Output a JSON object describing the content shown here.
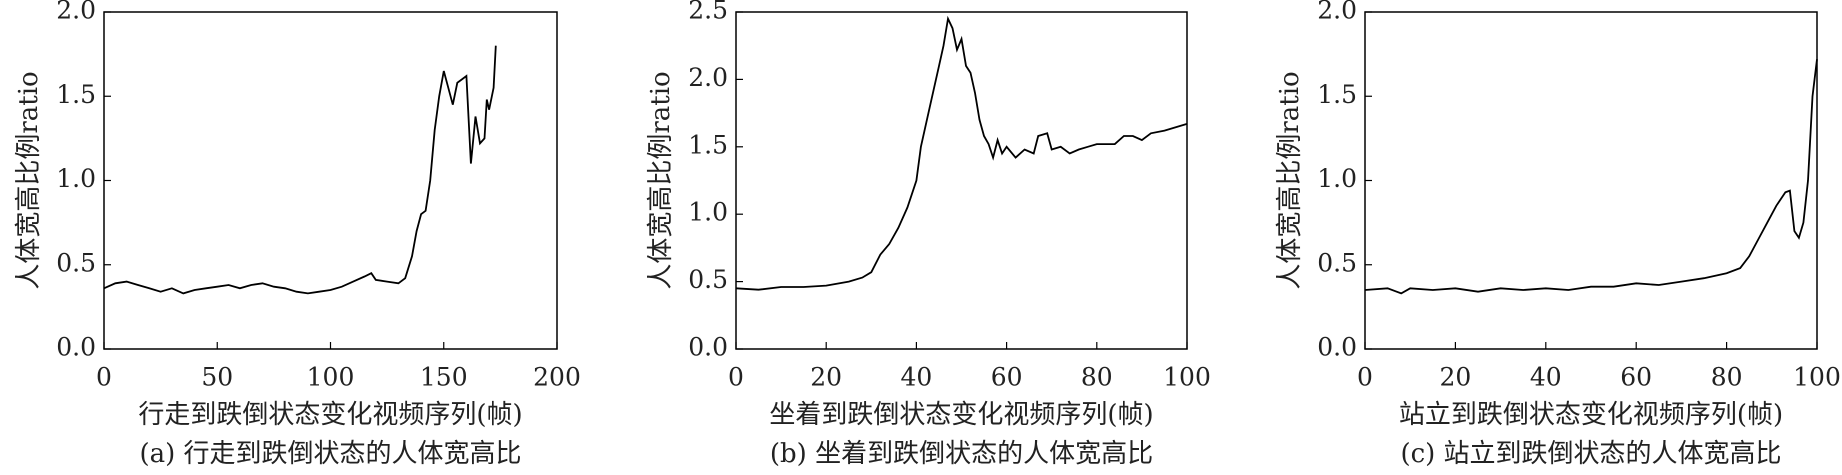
{
  "chart_data": [
    {
      "type": "line",
      "ylabel": "人体宽高比例ratio",
      "xlabel": "行走到跌倒状态变化视频序列(帧)",
      "caption": "(a) 行走到跌倒状态的人体宽高比",
      "xlim": [
        0,
        200
      ],
      "xticks": [
        0,
        50,
        100,
        150,
        200
      ],
      "ylim": [
        0,
        2
      ],
      "yticks": [
        {
          "value": 0,
          "label": "0.0"
        },
        0.5,
        {
          "value": 1,
          "label": "1.0"
        },
        1.5,
        {
          "value": 2,
          "label": "2.0"
        }
      ],
      "color": "#000000",
      "x": [
        0,
        5,
        10,
        15,
        20,
        25,
        30,
        35,
        40,
        45,
        50,
        55,
        60,
        65,
        70,
        75,
        80,
        85,
        90,
        95,
        100,
        105,
        110,
        115,
        118,
        120,
        125,
        130,
        133,
        136,
        138,
        140,
        142,
        144,
        146,
        148,
        150,
        152,
        154,
        156,
        158,
        160,
        162,
        164,
        166,
        168,
        169,
        170,
        172,
        173
      ],
      "values": [
        0.36,
        0.39,
        0.4,
        0.38,
        0.36,
        0.34,
        0.36,
        0.33,
        0.35,
        0.36,
        0.37,
        0.38,
        0.36,
        0.38,
        0.39,
        0.37,
        0.36,
        0.34,
        0.33,
        0.34,
        0.35,
        0.37,
        0.4,
        0.43,
        0.45,
        0.41,
        0.4,
        0.39,
        0.42,
        0.55,
        0.7,
        0.8,
        0.82,
        1.0,
        1.3,
        1.5,
        1.65,
        1.55,
        1.45,
        1.58,
        1.6,
        1.62,
        1.1,
        1.38,
        1.22,
        1.25,
        1.48,
        1.42,
        1.55,
        1.8
      ]
    },
    {
      "type": "line",
      "ylabel": "人体宽高比例ratio",
      "xlabel": "坐着到跌倒状态变化视频序列(帧)",
      "caption": "(b) 坐着到跌倒状态的人体宽高比",
      "xlim": [
        0,
        100
      ],
      "xticks": [
        0,
        20,
        40,
        60,
        80,
        100
      ],
      "ylim": [
        0,
        2.5
      ],
      "yticks": [
        {
          "value": 0,
          "label": "0.0"
        },
        0.5,
        {
          "value": 1,
          "label": "1.0"
        },
        1.5,
        {
          "value": 2,
          "label": "2.0"
        },
        2.5
      ],
      "color": "#000000",
      "x": [
        0,
        5,
        10,
        15,
        20,
        25,
        28,
        30,
        32,
        34,
        36,
        38,
        40,
        41,
        43,
        45,
        46,
        47,
        48,
        49,
        50,
        51,
        52,
        53,
        54,
        55,
        56,
        57,
        58,
        59,
        60,
        62,
        64,
        66,
        67,
        69,
        70,
        72,
        74,
        76,
        78,
        80,
        84,
        86,
        88,
        90,
        92,
        95,
        100
      ],
      "values": [
        0.45,
        0.44,
        0.46,
        0.46,
        0.47,
        0.5,
        0.53,
        0.57,
        0.7,
        0.78,
        0.9,
        1.05,
        1.25,
        1.5,
        1.8,
        2.1,
        2.25,
        2.45,
        2.38,
        2.22,
        2.3,
        2.1,
        2.05,
        1.9,
        1.7,
        1.58,
        1.52,
        1.42,
        1.55,
        1.45,
        1.5,
        1.42,
        1.48,
        1.45,
        1.58,
        1.6,
        1.48,
        1.5,
        1.45,
        1.48,
        1.5,
        1.52,
        1.52,
        1.58,
        1.58,
        1.55,
        1.6,
        1.62,
        1.67
      ]
    },
    {
      "type": "line",
      "ylabel": "人体宽高比例ratio",
      "xlabel": "站立到跌倒状态变化视频序列(帧)",
      "caption": "(c) 站立到跌倒状态的人体宽高比",
      "xlim": [
        0,
        100
      ],
      "xticks": [
        0,
        20,
        40,
        60,
        80,
        100
      ],
      "ylim": [
        0,
        2
      ],
      "yticks": [
        {
          "value": 0,
          "label": "0.0"
        },
        0.5,
        {
          "value": 1,
          "label": "1.0"
        },
        1.5,
        {
          "value": 2,
          "label": "2.0"
        }
      ],
      "color": "#000000",
      "x": [
        0,
        5,
        8,
        10,
        15,
        20,
        25,
        30,
        35,
        40,
        45,
        50,
        55,
        60,
        65,
        70,
        75,
        80,
        83,
        85,
        87,
        89,
        91,
        93,
        94,
        95,
        96,
        97,
        98,
        99,
        100
      ],
      "values": [
        0.35,
        0.36,
        0.33,
        0.36,
        0.35,
        0.36,
        0.34,
        0.36,
        0.35,
        0.36,
        0.35,
        0.37,
        0.37,
        0.39,
        0.38,
        0.4,
        0.42,
        0.45,
        0.48,
        0.55,
        0.65,
        0.75,
        0.85,
        0.93,
        0.94,
        0.7,
        0.66,
        0.75,
        1.0,
        1.5,
        1.72
      ]
    }
  ]
}
